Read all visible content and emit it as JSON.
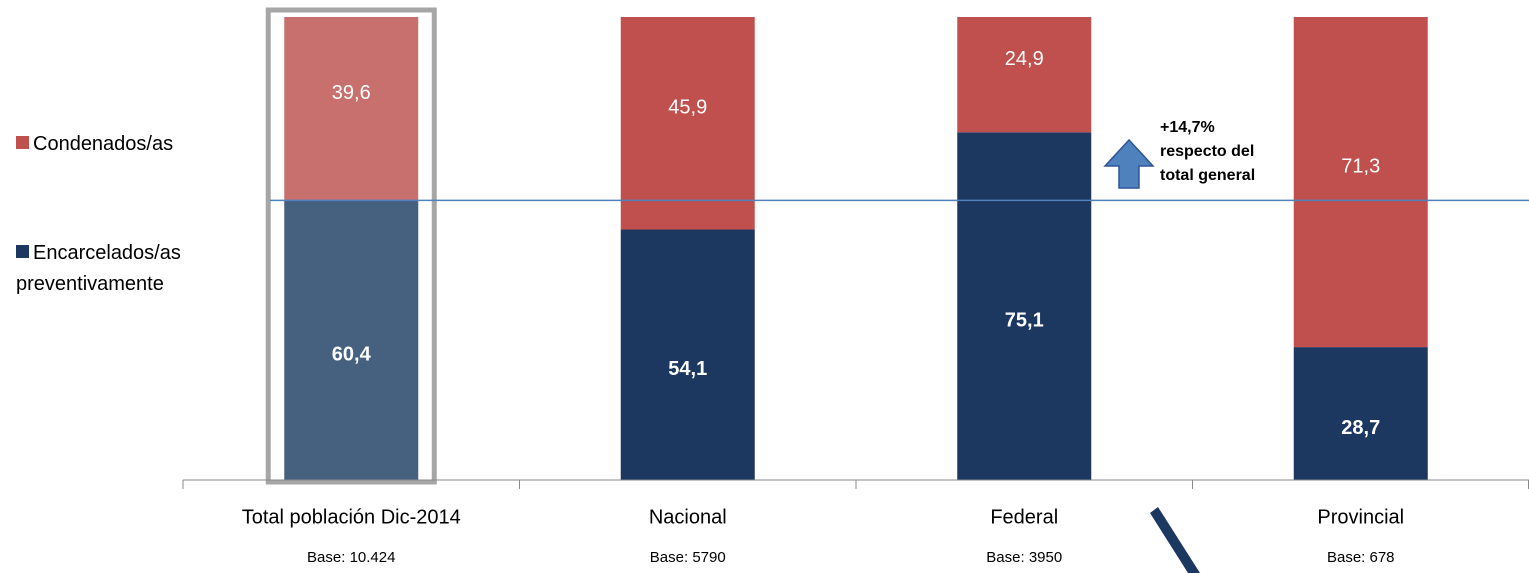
{
  "chart_data": {
    "type": "stacked_bar",
    "categories": [
      "Total población Dic-2014",
      "Nacional",
      "Federal",
      "Provincial"
    ],
    "bases": [
      "Base: 10.424",
      "Base: 5790",
      "Base: 3950",
      "Base: 678"
    ],
    "series": [
      {
        "name": "Encarcelados/as preventivamente",
        "color": "#1c3760",
        "colors": [
          "#46607f",
          "#1c3760",
          "#1c3760",
          "#1c3760"
        ],
        "values": [
          60.4,
          54.1,
          75.1,
          28.7
        ],
        "value_labels": [
          "60,4",
          "54,1",
          "75,1",
          "28,7"
        ]
      },
      {
        "name": "Condenados/as",
        "color": "#c0504d",
        "colors": [
          "#c8706d",
          "#c0504d",
          "#c0504d",
          "#c0504d"
        ],
        "values": [
          39.6,
          45.9,
          24.9,
          71.3
        ],
        "value_labels": [
          "39,6",
          "45,9",
          "24,9",
          "71,3"
        ]
      }
    ],
    "ylim": [
      0,
      100
    ],
    "annotation": [
      "+14,7%",
      "respecto del",
      "total general"
    ]
  }
}
